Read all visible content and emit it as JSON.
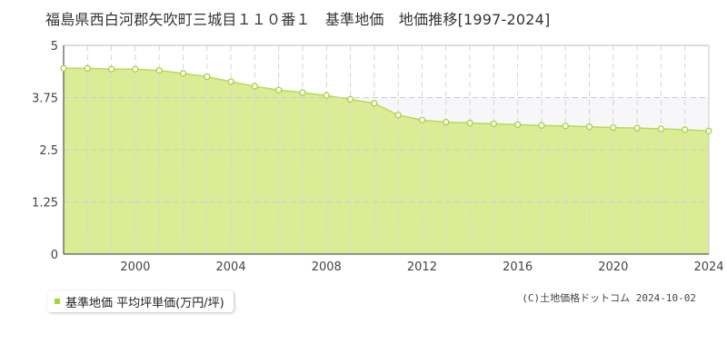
{
  "title": "福島県西白河郡矢吹町三城目１１０番１　基準地価　地価推移[1997-2024]",
  "legend_label": "基準地価 平均坪単価(万円/坪)",
  "credit": "(C)土地価格ドットコム 2024-10-02",
  "colors": {
    "fill": "#dcec96",
    "line": "#b8d95a",
    "marker": "#a6d23c",
    "upper_band": "#f7f7fa"
  },
  "chart_data": {
    "type": "area",
    "title": "福島県西白河郡矢吹町三城目１１０番１　基準地価　地価推移[1997-2024]",
    "xlabel": "",
    "ylabel": "",
    "x_ticks": [
      "2000",
      "2004",
      "2008",
      "2012",
      "2016",
      "2020",
      "2024"
    ],
    "y_ticks": [
      "0",
      "1.25",
      "2.5",
      "3.75",
      "5"
    ],
    "xlim": [
      1997,
      2024
    ],
    "ylim": [
      0,
      5
    ],
    "grid": true,
    "legend_position": "bottom-left",
    "series": [
      {
        "name": "基準地価 平均坪単価(万円/坪)",
        "x": [
          1997,
          1998,
          1999,
          2000,
          2001,
          2002,
          2003,
          2004,
          2005,
          2006,
          2007,
          2008,
          2009,
          2010,
          2011,
          2012,
          2013,
          2014,
          2015,
          2016,
          2017,
          2018,
          2019,
          2020,
          2021,
          2022,
          2023,
          2024
        ],
        "values": [
          4.45,
          4.45,
          4.43,
          4.43,
          4.4,
          4.33,
          4.25,
          4.13,
          4.02,
          3.93,
          3.87,
          3.8,
          3.71,
          3.61,
          3.33,
          3.21,
          3.16,
          3.14,
          3.12,
          3.1,
          3.08,
          3.07,
          3.05,
          3.03,
          3.02,
          3.0,
          2.98,
          2.95
        ]
      }
    ]
  }
}
